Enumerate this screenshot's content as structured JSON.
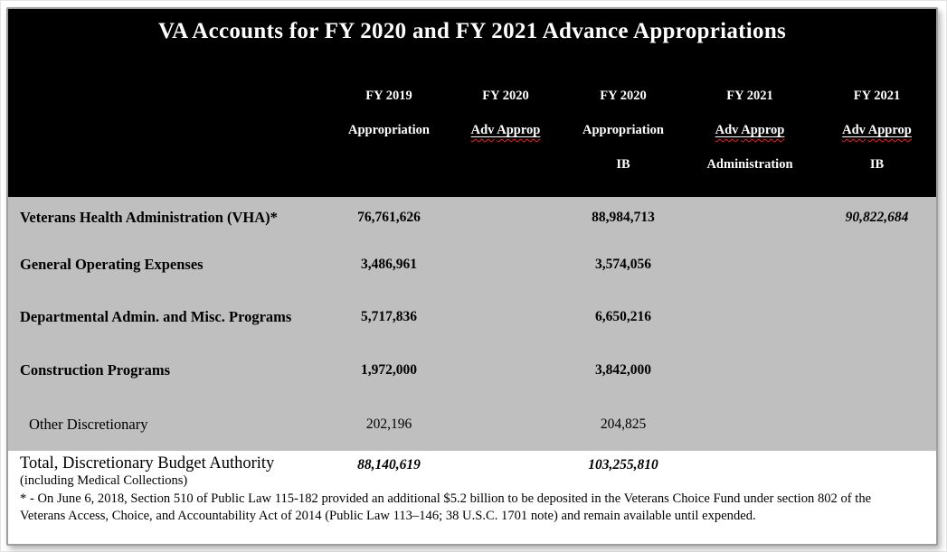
{
  "title": "VA Accounts for FY 2020 and FY 2021 Advance Appropriations",
  "colors": {
    "header_bg": "#000000",
    "body_bg": "#bfbfbf",
    "footer_bg": "#ffffff",
    "header_text": "#ffffff",
    "body_text": "#000000",
    "spellcheck_underline": "#ff0000",
    "frame_border": "#9e9e9e"
  },
  "table": {
    "header_columns": [
      {
        "line1": "FY 2019",
        "line2": "Appropriation",
        "line3": "",
        "spellcheck": false
      },
      {
        "line1": "FY 2020",
        "line2": "Adv Approp",
        "line3": "",
        "spellcheck": true
      },
      {
        "line1": "FY 2020",
        "line2": "Appropriation",
        "line3": "IB",
        "spellcheck": false
      },
      {
        "line1": "FY 2021",
        "line2": "Adv Approp",
        "line3": "Administration",
        "spellcheck": true
      },
      {
        "line1": "FY 2021",
        "line2": "Adv Approp",
        "line3": "IB",
        "spellcheck": true
      }
    ],
    "rows": [
      {
        "label": "Veterans Health Administration (VHA)*",
        "label_style": "bold",
        "cells": [
          {
            "col": 0,
            "text": "76,761,626",
            "style": "bold"
          },
          {
            "col": 2,
            "text": "88,984,713",
            "style": "bold"
          },
          {
            "col": 4,
            "text": "90,822,684",
            "style": "bold-italic"
          }
        ]
      },
      {
        "label": "General Operating Expenses",
        "label_style": "bold",
        "cells": [
          {
            "col": 0,
            "text": "3,486,961",
            "style": "bold"
          },
          {
            "col": 2,
            "text": "3,574,056",
            "style": "bold"
          }
        ]
      },
      {
        "label": "Departmental Admin. and Misc. Programs",
        "label_style": "bold",
        "cells": [
          {
            "col": 0,
            "text": "5,717,836",
            "style": "bold"
          },
          {
            "col": 2,
            "text": "6,650,216",
            "style": "bold"
          }
        ]
      },
      {
        "label": "Construction Programs",
        "label_style": "bold",
        "cells": [
          {
            "col": 0,
            "text": "1,972,000",
            "style": "bold"
          },
          {
            "col": 2,
            "text": "3,842,000",
            "style": "bold"
          }
        ]
      },
      {
        "label": "Other Discretionary",
        "label_style": "regular-indent",
        "cells": [
          {
            "col": 0,
            "text": "202,196",
            "style": "regular"
          },
          {
            "col": 2,
            "text": "204,825",
            "style": "regular"
          }
        ]
      }
    ],
    "total": {
      "label": "Total, Discretionary Budget Authority",
      "sublabel": "(including Medical Collections)",
      "cells": [
        {
          "col": 0,
          "text": "88,140,619",
          "style": "bold-italic"
        },
        {
          "col": 2,
          "text": "103,255,810",
          "style": "bold-italic"
        }
      ]
    },
    "footnote": "* - On June 6, 2018, Section 510 of Public Law 115-182 provided an additional $5.2 billion to be deposited in the Veterans Choice Fund under section 802 of the Veterans Access, Choice, and Accountability Act of 2014 (Public Law 113–146; 38 U.S.C. 1701 note) and remain available until expended."
  }
}
